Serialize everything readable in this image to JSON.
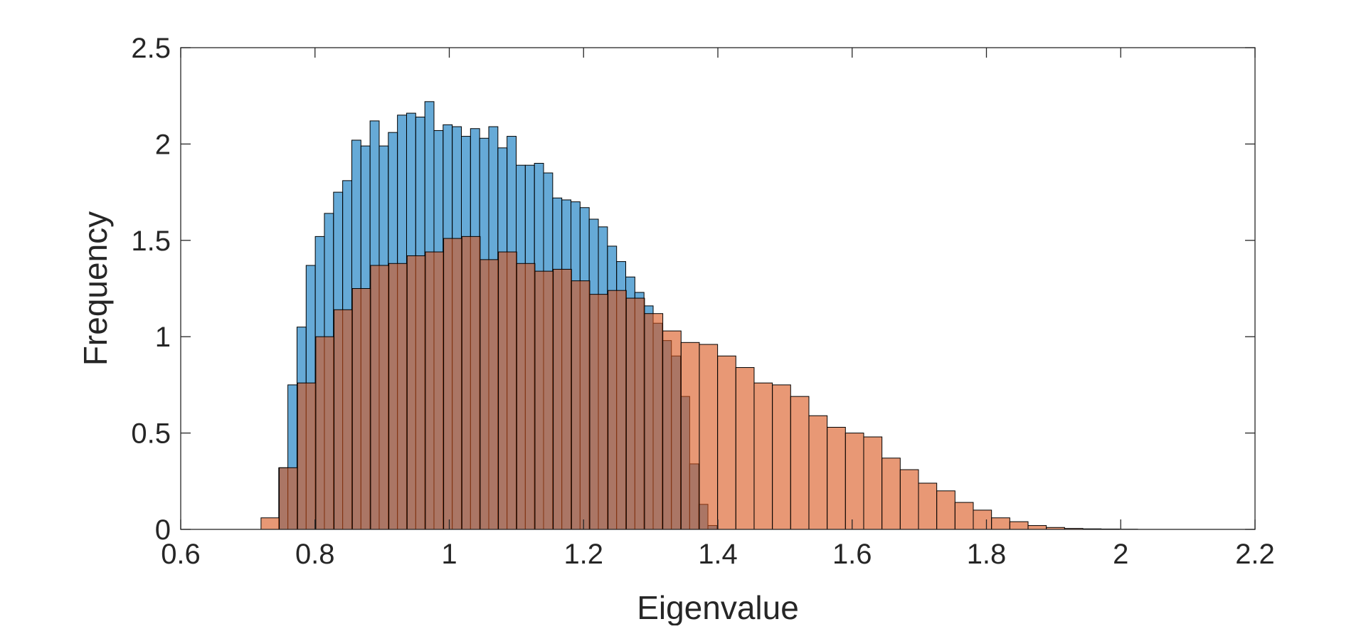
{
  "chart_data": {
    "type": "bar",
    "title": "",
    "xlabel": "Eigenvalue",
    "ylabel": "Frequency",
    "xlim": [
      0.6,
      2.2
    ],
    "ylim": [
      0,
      2.5
    ],
    "xticks": [
      "0.6",
      "0.8",
      "1",
      "1.2",
      "1.4",
      "1.6",
      "1.8",
      "2",
      "2.2"
    ],
    "yticks": [
      "0",
      "0.5",
      "1",
      "1.5",
      "2",
      "2.5"
    ],
    "grid": false,
    "box": true,
    "series": [
      {
        "color": "#0072BD",
        "opacity": 0.6,
        "bin_start": 0.746,
        "bin_width": 0.0136,
        "values": [
          0.32,
          0.75,
          1.05,
          1.37,
          1.52,
          1.64,
          1.75,
          1.81,
          2.02,
          1.99,
          2.12,
          1.99,
          2.06,
          2.15,
          2.16,
          2.14,
          2.22,
          2.07,
          2.1,
          2.09,
          2.04,
          2.08,
          2.03,
          2.09,
          1.98,
          2.04,
          1.89,
          1.89,
          1.9,
          1.85,
          1.72,
          1.71,
          1.7,
          1.67,
          1.61,
          1.57,
          1.47,
          1.39,
          1.31,
          1.23,
          1.16,
          1.07,
          0.98,
          0.9,
          0.69,
          0.34,
          0.13,
          0.02
        ]
      },
      {
        "color": "#D95319",
        "opacity": 0.6,
        "bin_start": 0.7196,
        "bin_width": 0.0272,
        "values": [
          0.06,
          0.32,
          0.76,
          1.0,
          1.14,
          1.25,
          1.37,
          1.38,
          1.42,
          1.44,
          1.51,
          1.52,
          1.4,
          1.44,
          1.38,
          1.34,
          1.35,
          1.29,
          1.22,
          1.24,
          1.2,
          1.12,
          1.03,
          0.97,
          0.96,
          0.9,
          0.84,
          0.76,
          0.75,
          0.69,
          0.59,
          0.53,
          0.5,
          0.48,
          0.37,
          0.31,
          0.24,
          0.2,
          0.14,
          0.1,
          0.06,
          0.04,
          0.02,
          0.01,
          0.005,
          0.003,
          0.002,
          0.001
        ]
      }
    ]
  }
}
